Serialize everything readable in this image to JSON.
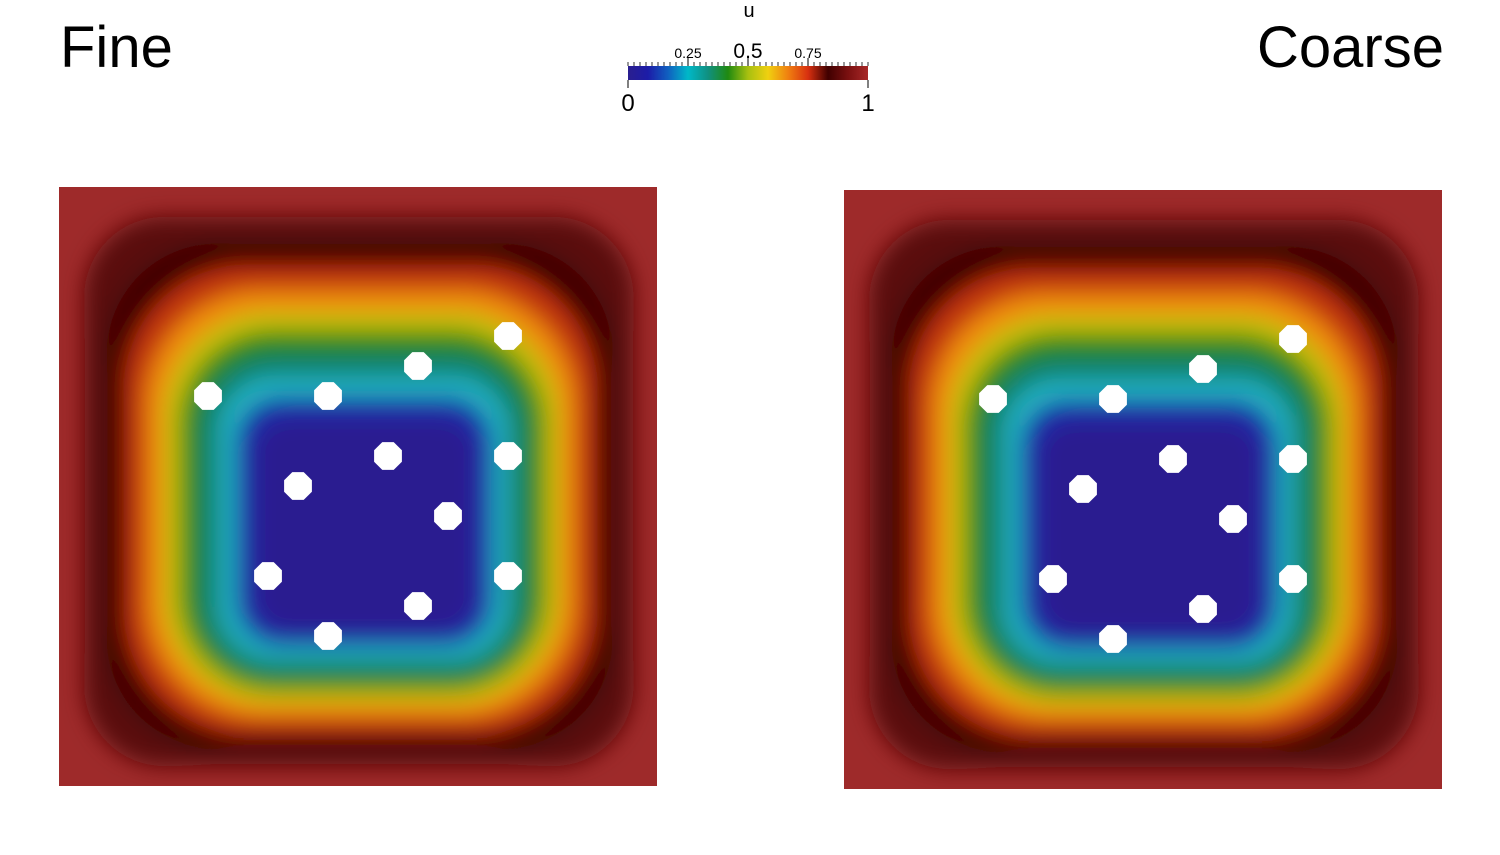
{
  "panels": [
    {
      "title": "Fine"
    },
    {
      "title": "Coarse"
    }
  ],
  "colorbar": {
    "title": "u",
    "range": [
      0,
      1
    ],
    "ticks": [
      0.25,
      0.5,
      0.75
    ],
    "colors": [
      "#2a1e8f",
      "#1c1ca8",
      "#1060c0",
      "#00b8c8",
      "#109080",
      "#208a10",
      "#a8c010",
      "#f0d010",
      "#f08010",
      "#d83010",
      "#400000",
      "#7a1010",
      "#a82828"
    ]
  }
}
